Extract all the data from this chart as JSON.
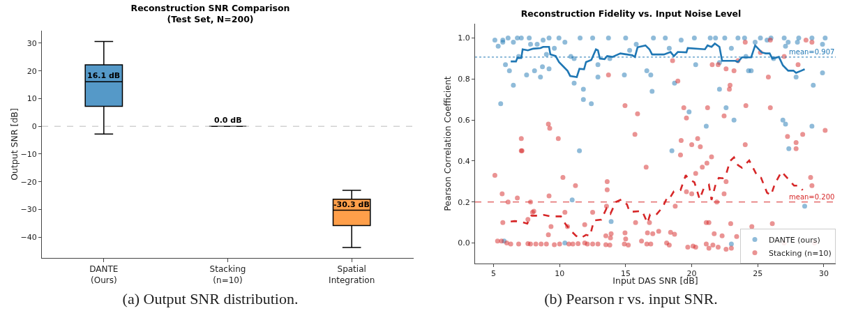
{
  "chart_data": [
    {
      "type": "box",
      "title": "Reconstruction SNR Comparison\n(Test Set, N=200)",
      "ylabel": "Output SNR [dB]",
      "categories": [
        "DANTE\n(Ours)",
        "Stacking\n(n=10)",
        "Spatial\nIntegration"
      ],
      "boxes": [
        {
          "low": -2.8,
          "q1": 7.2,
          "median": 16.1,
          "q3": 22.2,
          "high": 30.6
        },
        {
          "low": 0,
          "q1": 0,
          "median": 0,
          "q3": 0,
          "high": 0
        },
        {
          "low": -43.7,
          "q1": -35.8,
          "median": -30.3,
          "q3": -26.3,
          "high": -23.1
        }
      ],
      "colors": [
        "#5599c8",
        "#000000",
        "#ff9f4a"
      ],
      "ylim": [
        -47.5,
        34.5
      ],
      "yticks": [
        {
          "value": -40,
          "label": "−40"
        },
        {
          "value": -30,
          "label": "−30"
        },
        {
          "value": -20,
          "label": "−20"
        },
        {
          "value": -10,
          "label": "−10"
        },
        0,
        10,
        20,
        30
      ],
      "ref_lines": [
        {
          "axis": "y",
          "value": 0,
          "color": "#bbbbbb",
          "line_style": "dashed"
        }
      ],
      "annotations": [
        {
          "text": "16.1 dB",
          "x": "DANTE\n(Ours)",
          "y": 16.1
        },
        {
          "text": "0.0 dB",
          "x": "Stacking\n(n=10)",
          "y": 0
        },
        {
          "text": "-30.3 dB",
          "x": "Spatial\nIntegration",
          "y": -30.3
        },
        "(a) Output SNR distribution."
      ]
    },
    {
      "type": "scatter",
      "title": "Reconstruction Fidelity vs. Input Noise Level",
      "xlabel": "Input DAS SNR [dB]",
      "ylabel": "Pearson Correlation Coefficient",
      "xlim": [
        3.6,
        30.9
      ],
      "xticks": [
        5,
        10,
        15,
        20,
        25,
        30
      ],
      "ylim": [
        -0.1,
        1.07
      ],
      "yticks": [
        {
          "value": 0,
          "label": "0.0"
        },
        0.2,
        0.4,
        0.6,
        0.8,
        {
          "value": 1,
          "label": "1.0"
        }
      ],
      "marker": "circle",
      "legend": "bottom right",
      "series": [
        {
          "name": "DANTE (ours)",
          "color": "#1f77b4",
          "x": [
            5.1,
            5.35,
            5.54,
            5.7,
            5.7,
            5.9,
            6.1,
            6.2,
            6.5,
            6.5,
            6.8,
            6.9,
            7.1,
            7.5,
            7.7,
            7.8,
            8.1,
            8.3,
            8.55,
            8.7,
            8.75,
            9.0,
            9.2,
            9.2,
            9.6,
            9.95,
            10.4,
            10.85,
            11.1,
            11.1,
            11.55,
            11.8,
            11.8,
            12.4,
            12.5,
            12.9,
            12.9,
            13.7,
            13.8,
            14.9,
            15.0,
            15.3,
            15.8,
            16.6,
            16.9,
            17.0,
            17.1,
            18.0,
            18.3,
            18.7,
            19.2,
            19.8,
            20.2,
            20.3,
            21.1,
            21.4,
            21.8,
            22.1,
            22.1,
            22.5,
            22.6,
            23.0,
            23.2,
            23.5,
            24.0,
            24.1,
            24.3,
            24.5,
            24.8,
            25.2,
            25.7,
            26.0,
            26.2,
            26.9,
            27.0,
            27.1,
            27.1,
            27.3,
            27.9,
            28.1,
            28.0,
            29.1,
            29.2,
            29.1,
            29.9,
            29.9,
            30.1,
            11.5,
            18.5,
            27.35,
            10.95,
            13.9,
            28.55,
            5.8,
            10.4,
            23.0
          ],
          "values": [
            0.99,
            0.96,
            0.68,
            0.99,
            0.98,
            0.87,
            1.0,
            0.84,
            0.98,
            0.77,
            1.0,
            0.91,
            1.0,
            0.82,
            1.0,
            0.97,
            0.84,
            0.97,
            0.81,
            0.86,
            0.99,
            0.92,
            1.0,
            0.85,
            0.95,
            1.0,
            0.98,
            0.91,
            0.9,
            0.78,
            1.0,
            0.75,
            0.7,
            0.68,
            1.0,
            0.81,
            0.87,
            1.0,
            0.9,
            0.82,
            1.0,
            0.94,
            0.97,
            0.84,
            0.82,
            0.74,
            1.0,
            1.0,
            0.95,
            0.78,
            0.99,
            0.64,
            1.0,
            0.87,
            0.57,
            1.0,
            1.0,
            0.88,
            0.75,
            1.0,
            0.66,
            0.95,
            0.6,
            1.0,
            1.0,
            0.91,
            0.84,
            0.84,
            0.98,
            1.0,
            0.99,
            1.0,
            0.9,
            0.6,
            1.0,
            0.96,
            0.58,
            0.98,
            0.81,
            1.0,
            0.98,
            1.0,
            0.77,
            0.57,
            0.97,
            0.83,
            1.0,
            0.45,
            0.45,
            0.46,
            0.21,
            0.105,
            0.18,
            0.01,
            0.0,
            -0.005
          ]
        },
        {
          "name": "Stacking (n=10)",
          "color": "#d62728",
          "x": [
            9.15,
            9.25,
            7.1,
            9.9,
            7.1,
            13.7,
            14.95,
            15.9,
            15.7,
            18.55,
            18.95,
            19.4,
            19.6,
            19.2,
            20.45,
            20.0,
            20.65,
            21.2,
            21.55,
            22.0,
            22.6,
            22.9,
            22.85,
            22.45,
            23.2,
            23.5,
            24.05,
            24.1,
            24.05,
            25.2,
            25.8,
            25.95,
            25.95,
            27.0,
            27.25,
            28.05,
            27.9,
            28.4,
            28.65,
            29.1,
            30.1,
            7.15,
            5.1,
            5.65,
            6.1,
            5.7,
            6.8,
            7.8,
            7.6,
            7.95,
            8.05,
            9.2,
            9.15,
            9.35,
            10.25,
            10.4,
            10.6,
            11.2,
            11.9,
            12.5,
            13.6,
            13.6,
            13.55,
            13.5,
            13.9,
            13.85,
            14.95,
            15.0,
            15.75,
            16.55,
            16.65,
            16.8,
            17.05,
            17.5,
            18.4,
            18.7,
            18.75,
            19.15,
            19.6,
            20.0,
            20.3,
            20.8,
            21.15,
            21.3,
            21.5,
            21.1,
            21.7,
            21.9,
            22.3,
            22.45,
            22.6,
            22.95,
            23.4,
            24.55,
            26.1,
            27.9,
            29.0,
            29.1,
            5.3,
            5.6,
            6.0,
            6.3,
            6.9,
            7.6,
            7.8,
            8.2,
            8.6,
            9.0,
            9.6,
            10.0,
            10.7,
            11.0,
            11.4,
            11.9,
            12.1,
            12.5,
            12.9,
            13.5,
            13.8,
            14.9,
            15.2,
            16.2,
            16.6,
            16.9,
            18.1,
            18.3,
            19.7,
            20.1,
            20.3,
            21.1,
            21.3,
            21.6,
            22.0,
            22.6,
            23.0,
            23.9,
            24.2,
            25.5,
            27.0,
            29.3
          ],
          "values": [
            0.58,
            0.56,
            0.51,
            0.51,
            0.45,
            0.82,
            0.67,
            0.63,
            0.53,
            0.89,
            0.79,
            0.66,
            0.61,
            0.5,
            0.51,
            0.48,
            0.47,
            0.66,
            0.87,
            0.87,
            0.85,
            0.77,
            0.75,
            0.62,
            0.84,
            0.89,
            0.98,
            0.67,
            0.48,
            0.93,
            0.81,
            0.99,
            0.66,
            0.91,
            0.52,
            0.87,
            0.49,
            0.53,
            0.99,
            0.98,
            0.55,
            0.45,
            0.33,
            0.24,
            0.2,
            0.1,
            0.22,
            0.2,
            0.115,
            0.15,
            0.155,
            0.23,
            0.04,
            0.08,
            0.32,
            0.15,
            0.08,
            0.28,
            0.09,
            0.15,
            0.3,
            0.26,
            0.18,
            0.035,
            0.045,
            0.025,
            0.05,
            0.02,
            0.1,
            0.37,
            0.05,
            0.1,
            0.045,
            0.057,
            0.052,
            0.043,
            0.18,
            0.43,
            0.25,
            0.24,
            0.34,
            0.37,
            0.39,
            0.1,
            0.42,
            0.1,
            0.045,
            0.2,
            0.035,
            0.24,
            0.3,
            0.095,
            0.032,
            0.08,
            0.095,
            0.46,
            0.32,
            0.28,
            0.01,
            0.01,
            0.0,
            -0.005,
            -0.005,
            -0.003,
            -0.005,
            -0.005,
            -0.005,
            -0.005,
            -0.008,
            -0.005,
            -0.005,
            -0.005,
            -0.003,
            0.0,
            -0.005,
            -0.005,
            -0.005,
            -0.008,
            -0.01,
            -0.005,
            -0.01,
            0.01,
            -0.005,
            -0.005,
            0.0,
            -0.01,
            -0.02,
            -0.015,
            -0.02,
            -0.005,
            -0.025,
            -0.01,
            -0.02,
            -0.03,
            -0.025,
            null,
            null,
            null,
            0.0,
            0.0
          ]
        },
        {
          "type": "line",
          "color": "#1f77b4",
          "line_style": "solid",
          "marker": "none",
          "x": [
            6.3,
            6.7,
            6.8,
            7.1,
            7.2,
            7.6,
            8.0,
            8.55,
            8.75,
            9.2,
            9.3,
            9.7,
            9.95,
            10.3,
            10.6,
            10.8,
            11.3,
            11.5,
            11.85,
            12.0,
            12.4,
            12.75,
            12.9,
            13.05,
            13.4,
            13.6,
            14.0,
            14.6,
            15.1,
            15.5,
            15.7,
            15.9,
            16.5,
            16.8,
            17.0,
            17.9,
            18.4,
            18.65,
            18.95,
            19.6,
            19.7,
            21.0,
            21.2,
            21.5,
            21.75,
            22.1,
            22.3,
            23.3,
            23.5,
            23.8,
            24.5,
            24.8,
            25.3,
            25.6,
            25.9,
            26.1,
            26.6,
            26.9,
            27.3,
            27.7,
            27.9,
            28.3,
            28.55
          ],
          "values": [
            0.886,
            0.886,
            0.903,
            0.903,
            0.945,
            0.94,
            0.948,
            0.951,
            0.957,
            0.957,
            0.92,
            0.912,
            0.883,
            0.86,
            0.84,
            0.815,
            0.81,
            0.85,
            0.848,
            0.883,
            0.893,
            0.945,
            0.94,
            0.9,
            0.897,
            0.912,
            0.908,
            0.925,
            0.92,
            0.916,
            0.908,
            0.955,
            0.964,
            0.945,
            0.92,
            0.92,
            0.932,
            0.912,
            0.932,
            0.93,
            0.951,
            0.945,
            0.964,
            0.957,
            0.973,
            0.957,
            0.889,
            0.889,
            0.883,
            0.906,
            0.906,
            0.964,
            0.93,
            0.925,
            0.925,
            0.9,
            0.908,
            0.867,
            0.841,
            0.841,
            0.83,
            0.841,
            0.848
          ]
        },
        {
          "type": "line",
          "color": "#d62728",
          "line_style": "dashed",
          "marker": "none",
          "x": [
            6.3,
            6.6,
            7.0,
            7.55,
            7.85,
            8.15,
            8.45,
            8.8,
            9.3,
            10.1,
            10.45,
            10.85,
            11.25,
            11.6,
            12.0,
            12.3,
            12.6,
            13.15,
            13.55,
            13.85,
            14.25,
            14.7,
            15.1,
            15.3,
            16.25,
            16.65,
            16.85,
            17.3,
            17.8,
            18.2,
            18.4,
            18.65,
            19.15,
            19.55,
            19.75,
            20.2,
            20.6,
            20.9,
            21.3,
            21.5,
            21.8,
            22.05,
            22.35,
            22.6,
            22.9,
            23.2,
            23.5,
            23.8,
            24.35,
            25.0,
            25.25,
            25.7,
            26.0,
            26.3,
            26.8,
            27.25,
            27.75,
            28.1,
            28.4
          ],
          "values": [
            0.105,
            0.107,
            0.105,
            0.095,
            0.133,
            0.134,
            0.133,
            0.137,
            0.13,
            0.13,
            0.092,
            0.06,
            0.035,
            0.024,
            0.04,
            0.035,
            0.11,
            0.114,
            0.169,
            0.143,
            0.2,
            0.213,
            0.188,
            0.152,
            0.156,
            0.098,
            0.139,
            0.137,
            0.175,
            0.23,
            0.226,
            0.252,
            0.258,
            0.331,
            0.312,
            0.297,
            0.214,
            0.265,
            0.284,
            0.21,
            0.284,
            0.318,
            0.316,
            0.335,
            0.4,
            0.418,
            0.38,
            0.367,
            0.403,
            0.322,
            0.318,
            0.246,
            0.233,
            0.29,
            0.348,
            0.316,
            0.28,
            0.28,
            0.258
          ]
        }
      ],
      "ref_lines": [
        {
          "axis": "y",
          "value": 0.907,
          "label": "mean=0.907",
          "color": "#1f77b4",
          "line_style": "dotted"
        },
        {
          "axis": "y",
          "value": 0.2,
          "label": "mean=0.200",
          "color": "#d62728",
          "line_style": "dashed"
        }
      ],
      "annotations": [
        "(b) Pearson r vs. input SNR."
      ]
    }
  ]
}
